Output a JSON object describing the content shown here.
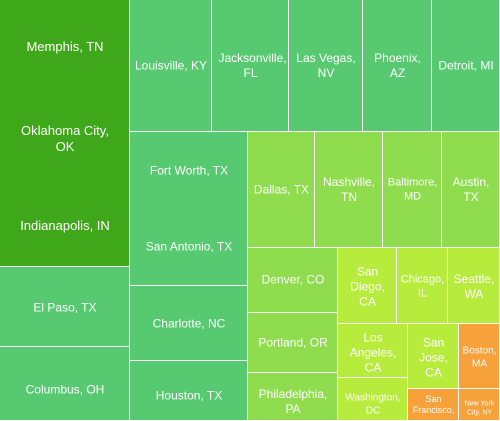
{
  "chart_data": {
    "type": "treemap",
    "colors": {
      "dark_green": "#3fa81a",
      "mid_green": "#57c971",
      "light_green": "#8fdd4f",
      "yellow_green": "#b7ec3c",
      "orange": "#f7a13a"
    },
    "tiles": [
      {
        "id": "block-1",
        "labels": [
          {
            "text": "Memphis, TN",
            "size": 13
          },
          {
            "text": "Oklahoma City, OK",
            "size": 13
          },
          {
            "text": "Indianapolis, IN",
            "size": 13
          }
        ],
        "color": "dark_green"
      },
      {
        "id": "louisville",
        "labels": [
          {
            "text": "Louisville, KY",
            "size": 12
          }
        ],
        "color": "mid_green"
      },
      {
        "id": "jacksonville",
        "labels": [
          {
            "text": "Jacksonville, FL",
            "size": 12
          }
        ],
        "color": "mid_green"
      },
      {
        "id": "las-vegas",
        "labels": [
          {
            "text": "Las Vegas, NV",
            "size": 12
          }
        ],
        "color": "mid_green"
      },
      {
        "id": "phoenix",
        "labels": [
          {
            "text": "Phoenix, AZ",
            "size": 12
          }
        ],
        "color": "mid_green"
      },
      {
        "id": "detroit",
        "labels": [
          {
            "text": "Detroit, MI",
            "size": 12
          }
        ],
        "color": "mid_green"
      },
      {
        "id": "block-2",
        "labels": [
          {
            "text": "Fort Worth, TX",
            "size": 12
          },
          {
            "text": "San Antonio, TX",
            "size": 12
          }
        ],
        "color": "mid_green"
      },
      {
        "id": "dallas",
        "labels": [
          {
            "text": "Dallas, TX",
            "size": 12
          }
        ],
        "color": "light_green"
      },
      {
        "id": "nashville",
        "labels": [
          {
            "text": "Nashville, TN",
            "size": 12
          }
        ],
        "color": "light_green"
      },
      {
        "id": "baltimore",
        "labels": [
          {
            "text": "Baltimore, MD",
            "size": 11
          }
        ],
        "color": "light_green"
      },
      {
        "id": "austin",
        "labels": [
          {
            "text": "Austin, TX",
            "size": 12
          }
        ],
        "color": "light_green"
      },
      {
        "id": "el-paso",
        "labels": [
          {
            "text": "El Paso, TX",
            "size": 12
          }
        ],
        "color": "mid_green"
      },
      {
        "id": "columbus",
        "labels": [
          {
            "text": "Columbus, OH",
            "size": 12
          }
        ],
        "color": "mid_green"
      },
      {
        "id": "charlotte",
        "labels": [
          {
            "text": "Charlotte, NC",
            "size": 12
          }
        ],
        "color": "mid_green"
      },
      {
        "id": "houston",
        "labels": [
          {
            "text": "Houston, TX",
            "size": 12
          }
        ],
        "color": "mid_green"
      },
      {
        "id": "denver",
        "labels": [
          {
            "text": "Denver, CO",
            "size": 12
          }
        ],
        "color": "light_green"
      },
      {
        "id": "portland",
        "labels": [
          {
            "text": "Portland, OR",
            "size": 12
          }
        ],
        "color": "light_green"
      },
      {
        "id": "philadelphia",
        "labels": [
          {
            "text": "Philadelphia, PA",
            "size": 12
          }
        ],
        "color": "light_green"
      },
      {
        "id": "san-diego",
        "labels": [
          {
            "text": "San Diego, CA",
            "size": 12
          }
        ],
        "color": "yellow_green"
      },
      {
        "id": "chicago",
        "labels": [
          {
            "text": "Chicago, IL",
            "size": 11
          }
        ],
        "color": "yellow_green"
      },
      {
        "id": "seattle",
        "labels": [
          {
            "text": "Seattle, WA",
            "size": 12
          }
        ],
        "color": "yellow_green"
      },
      {
        "id": "los-angeles",
        "labels": [
          {
            "text": "Los Angeles, CA",
            "size": 12
          }
        ],
        "color": "yellow_green"
      },
      {
        "id": "san-jose",
        "labels": [
          {
            "text": "San Jose, CA",
            "size": 12
          }
        ],
        "color": "yellow_green"
      },
      {
        "id": "washington",
        "labels": [
          {
            "text": "Washington, DC",
            "size": 10
          }
        ],
        "color": "yellow_green"
      },
      {
        "id": "boston",
        "labels": [
          {
            "text": "Boston, MA",
            "size": 10
          }
        ],
        "color": "orange"
      },
      {
        "id": "san-francisco",
        "labels": [
          {
            "text": "San Francisco,",
            "size": 9
          }
        ],
        "color": "orange"
      },
      {
        "id": "new-york",
        "labels": [
          {
            "text": "New York City, NY",
            "size": 7
          }
        ],
        "color": "orange"
      }
    ]
  }
}
